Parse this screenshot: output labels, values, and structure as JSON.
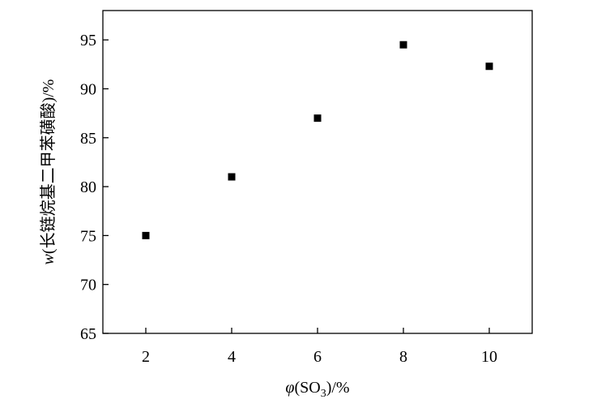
{
  "chart_data": {
    "type": "scatter",
    "title": "",
    "xlabel": {
      "symbol": "φ",
      "open": "(SO",
      "subscript": "3",
      "close": ")/%"
    },
    "ylabel": {
      "symbol": "w",
      "text": "(长链烷基二甲苯磺酸)/%"
    },
    "xlim": [
      1,
      11
    ],
    "ylim": [
      65,
      98
    ],
    "xticks": [
      2,
      4,
      6,
      8,
      10
    ],
    "yticks": [
      65,
      70,
      75,
      80,
      85,
      90,
      95
    ],
    "ytick_labels": [
      "65",
      "70",
      "75",
      "80",
      "85",
      "90",
      "95"
    ],
    "xtick_labels": [
      "2",
      "4",
      "6",
      "8",
      "10"
    ],
    "grid": false,
    "legend": "none",
    "marker": "square",
    "marker_color": "#000000",
    "series": [
      {
        "x": [
          2,
          4,
          6,
          8,
          10
        ],
        "y": [
          75.0,
          81.0,
          87.0,
          94.5,
          92.3
        ]
      }
    ]
  }
}
